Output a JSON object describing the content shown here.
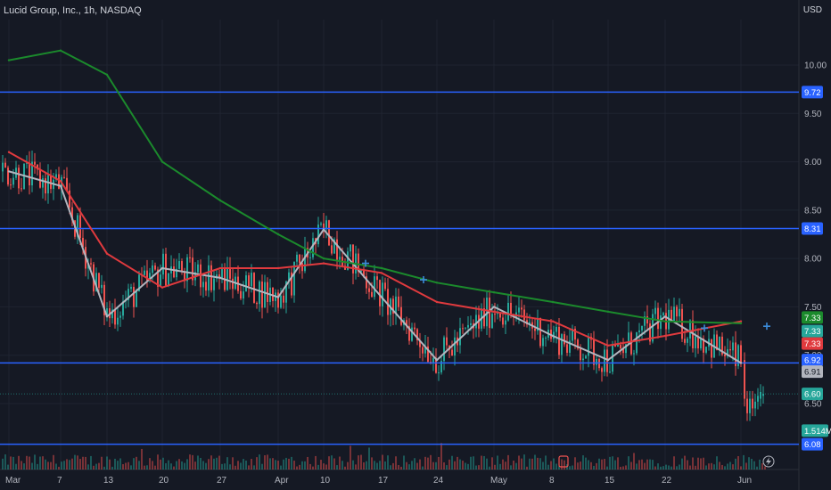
{
  "header": {
    "title": "Lucid Group, Inc., 1h, NASDAQ",
    "currency": "USD"
  },
  "colors": {
    "background": "#151924",
    "grid": "#1f2430",
    "up": "#26a69a",
    "down": "#ef5350",
    "level_line": "#2962ff",
    "ma_fast": "#b2b5be",
    "ma_mid": "#e03a3e",
    "ma_slow": "#1b8a2c"
  },
  "chart_data": {
    "type": "line",
    "title": "Lucid Group, Inc., 1h, NASDAQ",
    "ylim": [
      6.0,
      10.5
    ],
    "y_ticks": [
      6.5,
      7.0,
      7.5,
      8.0,
      8.5,
      9.0,
      9.5,
      10.0
    ],
    "y_tick_labels": [
      "6.50",
      "7.00",
      "7.50",
      "8.00",
      "8.50",
      "9.00",
      "9.50",
      "10.00"
    ],
    "x_ticks": [
      "Mar",
      "7",
      "13",
      "20",
      "27",
      "Apr",
      "10",
      "17",
      "24",
      "May",
      "8",
      "15",
      "22",
      "Jun"
    ],
    "grid": true,
    "horizontal_levels": [
      9.72,
      8.31,
      6.92,
      6.08
    ],
    "price_tags": [
      {
        "label": "9.72",
        "value": 9.72,
        "color": "#2962ff",
        "text_color": "#ffffff"
      },
      {
        "label": "8.31",
        "value": 8.31,
        "color": "#2962ff",
        "text_color": "#ffffff"
      },
      {
        "label": "7.33",
        "value": 7.39,
        "color": "#1b8a2c",
        "text_color": "#ffffff"
      },
      {
        "label": "7.33",
        "value": 7.25,
        "color": "#26a69a",
        "text_color": "#ffffff"
      },
      {
        "label": "7.33",
        "value": 7.12,
        "color": "#e03a3e",
        "text_color": "#ffffff"
      },
      {
        "label": "6.92",
        "value": 6.95,
        "color": "#2962ff",
        "text_color": "#ffffff"
      },
      {
        "label": "6.91",
        "value": 6.83,
        "color": "#b2b5be",
        "text_color": "#131722"
      },
      {
        "label": "6.60",
        "value": 6.6,
        "color": "#26a69a",
        "text_color": "#ffffff"
      },
      {
        "label": "1.514M",
        "value": 6.22,
        "color": "#26a69a",
        "text_color": "#ffffff"
      },
      {
        "label": "6.08",
        "value": 6.08,
        "color": "#2962ff",
        "text_color": "#ffffff"
      }
    ],
    "series": [
      {
        "name": "",
        "color": "#b2b5be",
        "points": [
          [
            "Mar",
            8.9
          ],
          [
            "7",
            8.75
          ],
          [
            "13",
            7.4
          ],
          [
            "20",
            7.9
          ],
          [
            "27",
            7.8
          ],
          [
            "Apr",
            7.6
          ],
          [
            "10",
            8.3
          ],
          [
            "17",
            7.6
          ],
          [
            "24",
            6.95
          ],
          [
            "May",
            7.5
          ],
          [
            "8",
            7.2
          ],
          [
            "15",
            6.95
          ],
          [
            "22",
            7.4
          ],
          [
            "Jun",
            6.92
          ]
        ]
      },
      {
        "name": "",
        "color": "#e03a3e",
        "points": [
          [
            "Mar",
            9.1
          ],
          [
            "7",
            8.8
          ],
          [
            "13",
            8.05
          ],
          [
            "20",
            7.7
          ],
          [
            "27",
            7.9
          ],
          [
            "Apr",
            7.9
          ],
          [
            "10",
            7.95
          ],
          [
            "17",
            7.85
          ],
          [
            "24",
            7.55
          ],
          [
            "May",
            7.45
          ],
          [
            "8",
            7.35
          ],
          [
            "15",
            7.1
          ],
          [
            "22",
            7.2
          ],
          [
            "Jun",
            7.35
          ]
        ]
      },
      {
        "name": "",
        "color": "#1b8a2c",
        "points": [
          [
            "Mar",
            10.05
          ],
          [
            "7",
            10.15
          ],
          [
            "13",
            9.9
          ],
          [
            "20",
            9.0
          ],
          [
            "27",
            8.6
          ],
          [
            "Apr",
            8.25
          ],
          [
            "10",
            8.0
          ],
          [
            "17",
            7.9
          ],
          [
            "24",
            7.75
          ],
          [
            "May",
            7.65
          ],
          [
            "8",
            7.55
          ],
          [
            "15",
            7.45
          ],
          [
            "22",
            7.35
          ],
          [
            "Jun",
            7.33
          ]
        ]
      }
    ],
    "last_price": 6.6
  }
}
